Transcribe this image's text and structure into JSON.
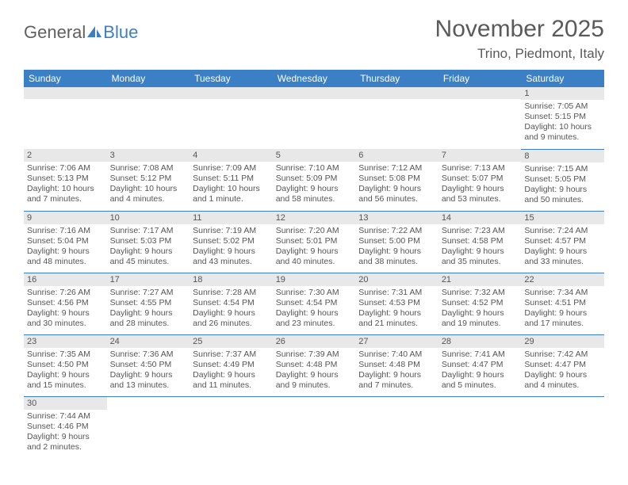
{
  "logo": {
    "text1": "General",
    "text2": "Blue"
  },
  "title": "November 2025",
  "location": "Trino, Piedmont, Italy",
  "colors": {
    "header_bg": "#3b7fc4",
    "header_text": "#ffffff",
    "daynum_bg": "#e8e8e8",
    "row_divider": "#3b7fc4",
    "body_text": "#555555",
    "title_text": "#5a5a5a"
  },
  "weekdays": [
    "Sunday",
    "Monday",
    "Tuesday",
    "Wednesday",
    "Thursday",
    "Friday",
    "Saturday"
  ],
  "grid": [
    [
      null,
      null,
      null,
      null,
      null,
      null,
      {
        "n": "1",
        "sr": "7:05 AM",
        "ss": "5:15 PM",
        "dl": "10 hours and 9 minutes."
      }
    ],
    [
      {
        "n": "2",
        "sr": "7:06 AM",
        "ss": "5:13 PM",
        "dl": "10 hours and 7 minutes."
      },
      {
        "n": "3",
        "sr": "7:08 AM",
        "ss": "5:12 PM",
        "dl": "10 hours and 4 minutes."
      },
      {
        "n": "4",
        "sr": "7:09 AM",
        "ss": "5:11 PM",
        "dl": "10 hours and 1 minute."
      },
      {
        "n": "5",
        "sr": "7:10 AM",
        "ss": "5:09 PM",
        "dl": "9 hours and 58 minutes."
      },
      {
        "n": "6",
        "sr": "7:12 AM",
        "ss": "5:08 PM",
        "dl": "9 hours and 56 minutes."
      },
      {
        "n": "7",
        "sr": "7:13 AM",
        "ss": "5:07 PM",
        "dl": "9 hours and 53 minutes."
      },
      {
        "n": "8",
        "sr": "7:15 AM",
        "ss": "5:05 PM",
        "dl": "9 hours and 50 minutes."
      }
    ],
    [
      {
        "n": "9",
        "sr": "7:16 AM",
        "ss": "5:04 PM",
        "dl": "9 hours and 48 minutes."
      },
      {
        "n": "10",
        "sr": "7:17 AM",
        "ss": "5:03 PM",
        "dl": "9 hours and 45 minutes."
      },
      {
        "n": "11",
        "sr": "7:19 AM",
        "ss": "5:02 PM",
        "dl": "9 hours and 43 minutes."
      },
      {
        "n": "12",
        "sr": "7:20 AM",
        "ss": "5:01 PM",
        "dl": "9 hours and 40 minutes."
      },
      {
        "n": "13",
        "sr": "7:22 AM",
        "ss": "5:00 PM",
        "dl": "9 hours and 38 minutes."
      },
      {
        "n": "14",
        "sr": "7:23 AM",
        "ss": "4:58 PM",
        "dl": "9 hours and 35 minutes."
      },
      {
        "n": "15",
        "sr": "7:24 AM",
        "ss": "4:57 PM",
        "dl": "9 hours and 33 minutes."
      }
    ],
    [
      {
        "n": "16",
        "sr": "7:26 AM",
        "ss": "4:56 PM",
        "dl": "9 hours and 30 minutes."
      },
      {
        "n": "17",
        "sr": "7:27 AM",
        "ss": "4:55 PM",
        "dl": "9 hours and 28 minutes."
      },
      {
        "n": "18",
        "sr": "7:28 AM",
        "ss": "4:54 PM",
        "dl": "9 hours and 26 minutes."
      },
      {
        "n": "19",
        "sr": "7:30 AM",
        "ss": "4:54 PM",
        "dl": "9 hours and 23 minutes."
      },
      {
        "n": "20",
        "sr": "7:31 AM",
        "ss": "4:53 PM",
        "dl": "9 hours and 21 minutes."
      },
      {
        "n": "21",
        "sr": "7:32 AM",
        "ss": "4:52 PM",
        "dl": "9 hours and 19 minutes."
      },
      {
        "n": "22",
        "sr": "7:34 AM",
        "ss": "4:51 PM",
        "dl": "9 hours and 17 minutes."
      }
    ],
    [
      {
        "n": "23",
        "sr": "7:35 AM",
        "ss": "4:50 PM",
        "dl": "9 hours and 15 minutes."
      },
      {
        "n": "24",
        "sr": "7:36 AM",
        "ss": "4:50 PM",
        "dl": "9 hours and 13 minutes."
      },
      {
        "n": "25",
        "sr": "7:37 AM",
        "ss": "4:49 PM",
        "dl": "9 hours and 11 minutes."
      },
      {
        "n": "26",
        "sr": "7:39 AM",
        "ss": "4:48 PM",
        "dl": "9 hours and 9 minutes."
      },
      {
        "n": "27",
        "sr": "7:40 AM",
        "ss": "4:48 PM",
        "dl": "9 hours and 7 minutes."
      },
      {
        "n": "28",
        "sr": "7:41 AM",
        "ss": "4:47 PM",
        "dl": "9 hours and 5 minutes."
      },
      {
        "n": "29",
        "sr": "7:42 AM",
        "ss": "4:47 PM",
        "dl": "9 hours and 4 minutes."
      }
    ],
    [
      {
        "n": "30",
        "sr": "7:44 AM",
        "ss": "4:46 PM",
        "dl": "9 hours and 2 minutes."
      },
      null,
      null,
      null,
      null,
      null,
      null
    ]
  ],
  "labels": {
    "sunrise": "Sunrise:",
    "sunset": "Sunset:",
    "daylight": "Daylight:"
  }
}
